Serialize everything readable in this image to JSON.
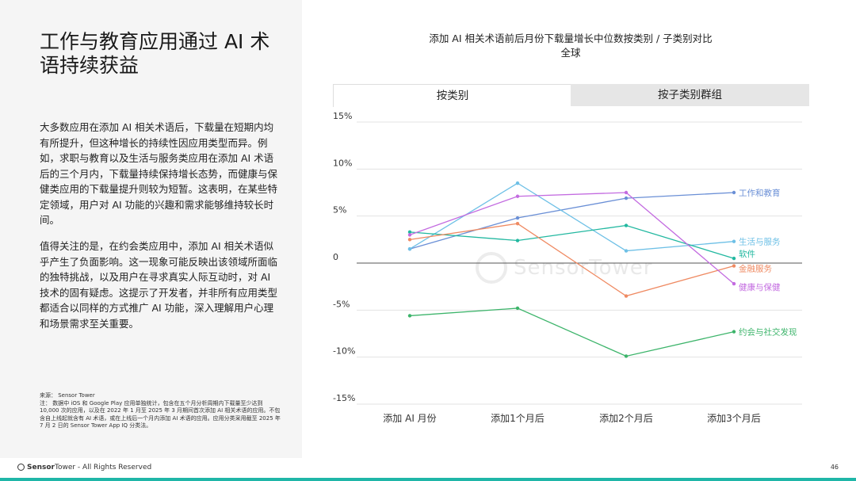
{
  "page": {
    "title": "工作与教育应用通过 AI 术语持续获益",
    "paragraph1": "大多数应用在添加 AI 相关术语后，下载量在短期内均有所提升，但这种增长的持续性因应用类型而异。例如，求职与教育以及生活与服务类应用在添加 AI 术语后的三个月内，下载量持续保持增长态势，而健康与保健类应用的下载量提升则较为短暂。这表明，在某些特定领域，用户对 AI 功能的兴趣和需求能够维持较长时间。",
    "paragraph2": "值得关注的是，在约会类应用中，添加 AI 相关术语似乎产生了负面影响。这一现象可能反映出该领域所面临的独特挑战，以及用户在寻求真实人际互动时，对 AI 技术的固有疑虑。这提示了开发者，并非所有应用类型都适合以同样的方式推广 AI 功能，深入理解用户心理和场景需求至关重要。",
    "source": "来源： Sensor Tower",
    "note": "注： 数据中 iOS 和 Google Play 应用单独统计，包含在五个月分析周期内下载量至少达到 10,000 次的应用，以及在 2022 年 1 月至 2025 年 3 月期间首次添加 AI 相关术语的应用。不包含自上线起就含有 AI 术语，或在上线后一个月内添加 AI 术语的应用。应用分类采用截至 2025 年 7 月 2 日的 Sensor Tower App IQ 分类法。"
  },
  "tabs": {
    "category": "按类别",
    "subcategory": "按子类别群组"
  },
  "footer": {
    "brand": "Sensor",
    "brand2": "Tower",
    "rights": " - All Rights Reserved",
    "page_number": "46"
  },
  "watermark": "SensorTower",
  "chart_data": {
    "type": "line",
    "title": "添加 AI 相关术语前后月份下载量增长中位数按类别 / 子类别对比",
    "subtitle": "全球",
    "categories": [
      "添加 AI 月份",
      "添加1个月后",
      "添加2个月后",
      "添加3个月后"
    ],
    "ylim": [
      -15,
      15
    ],
    "yticks": [
      15,
      10,
      5,
      0,
      -5,
      -10,
      -15
    ],
    "ytick_labels": [
      "15%",
      "10%",
      "5%",
      "0",
      "-5%",
      "-10%",
      "-15%"
    ],
    "grid": true,
    "series": [
      {
        "name": "工作和教育",
        "color": "#6a8fd6",
        "values": [
          1.5,
          4.8,
          6.9,
          7.5
        ]
      },
      {
        "name": "生活与服务",
        "color": "#6ec0e6",
        "values": [
          1.5,
          8.5,
          1.3,
          2.3
        ]
      },
      {
        "name": "软件",
        "color": "#22b8a0",
        "values": [
          3.3,
          2.4,
          4.0,
          0.5
        ]
      },
      {
        "name": "金融服务",
        "color": "#ef8a62",
        "values": [
          2.5,
          4.2,
          -3.5,
          -0.3
        ]
      },
      {
        "name": "健康与保健",
        "color": "#c36be0",
        "values": [
          3.0,
          7.1,
          7.5,
          -2.2
        ]
      },
      {
        "name": "约会与社交发现",
        "color": "#3cb46a",
        "values": [
          -5.6,
          -4.8,
          -9.9,
          -7.3
        ]
      }
    ]
  }
}
